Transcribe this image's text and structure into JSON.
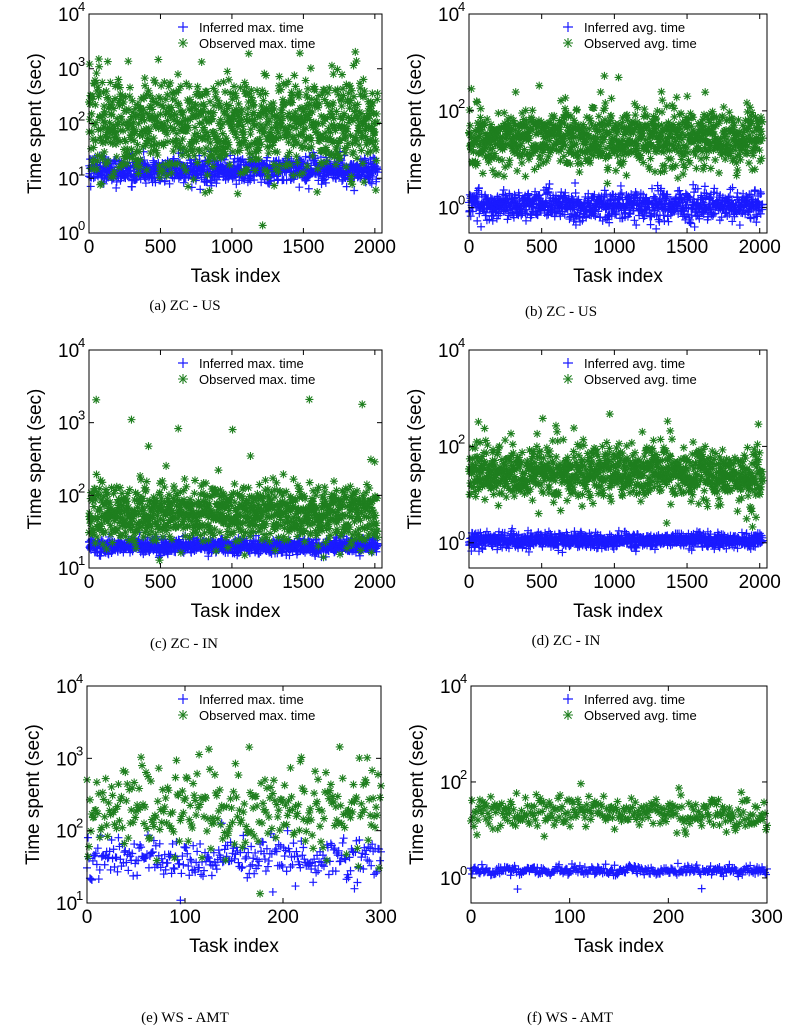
{
  "colors": {
    "inferred": "#1a1aff",
    "observed": "#1f7f1f",
    "axis": "#000000"
  },
  "chart_data": [
    {
      "type": "scatter",
      "caption": "(a) ZC - US",
      "xlabel": "Task index",
      "ylabel": "Time spent (sec)",
      "xlim": [
        0,
        2050
      ],
      "ylim": [
        1,
        10000
      ],
      "yscale": "log",
      "xticks": [
        "0",
        "500",
        "1000",
        "1500",
        "2000"
      ],
      "yticks": [
        "10",
        "10",
        "10",
        "10",
        "10"
      ],
      "ytick_exps": [
        "0",
        "1",
        "2",
        "3",
        "4"
      ],
      "legend_position": "top-right",
      "series": [
        {
          "name": "Inferred max. time",
          "marker": "plus",
          "n_points": 2000,
          "x_max": 2020,
          "log_center": 1.15,
          "log_spread": 0.12,
          "outlier_low": 0.9,
          "outlier_high": 1.5
        },
        {
          "name": "Observed max. time",
          "marker": "star",
          "n_points": 2000,
          "x_max": 2020,
          "log_center": 2.0,
          "log_spread": 0.45,
          "outlier_low": 0.7,
          "outlier_high": 3.5
        }
      ]
    },
    {
      "type": "scatter",
      "caption": "(b) ZC - US",
      "xlabel": "Task index",
      "ylabel": "Time spent (sec)",
      "xlim": [
        0,
        2050
      ],
      "ylim": [
        0.3,
        10000
      ],
      "yscale": "log",
      "xticks": [
        "0",
        "500",
        "1000",
        "1500",
        "2000"
      ],
      "yticks": [
        "10",
        "10",
        "10"
      ],
      "ytick_exps": [
        "0",
        "2",
        "4"
      ],
      "legend_position": "top-right",
      "series": [
        {
          "name": "Inferred avg. time",
          "marker": "plus",
          "n_points": 2000,
          "x_max": 2020,
          "log_center": 0.05,
          "log_spread": 0.15,
          "outlier_low": -0.3,
          "outlier_high": 0.3
        },
        {
          "name": "Observed avg. time",
          "marker": "star",
          "n_points": 2000,
          "x_max": 2020,
          "log_center": 1.45,
          "log_spread": 0.3,
          "outlier_low": 0.6,
          "outlier_high": 2.8
        }
      ]
    },
    {
      "type": "scatter",
      "caption": "(c) ZC - IN",
      "xlabel": "Task index",
      "ylabel": "Time spent (sec)",
      "xlim": [
        0,
        2050
      ],
      "ylim": [
        10,
        10000
      ],
      "yscale": "log",
      "xticks": [
        "0",
        "500",
        "1000",
        "1500",
        "2000"
      ],
      "yticks": [
        "10",
        "10",
        "10",
        "10"
      ],
      "ytick_exps": [
        "1",
        "2",
        "3",
        "4"
      ],
      "legend_position": "top-right",
      "series": [
        {
          "name": "Inferred max. time",
          "marker": "plus",
          "n_points": 2000,
          "x_max": 2020,
          "log_center": 1.3,
          "log_spread": 0.05,
          "outlier_low": 1.2,
          "outlier_high": 1.45
        },
        {
          "name": "Observed max. time",
          "marker": "star",
          "n_points": 2000,
          "x_max": 2020,
          "log_center": 1.75,
          "log_spread": 0.2,
          "outlier_low": 1.3,
          "outlier_high": 3.4
        }
      ]
    },
    {
      "type": "scatter",
      "caption": "(d)  ZC - IN",
      "xlabel": "Task index",
      "ylabel": "Time spent (sec)",
      "xlim": [
        0,
        2050
      ],
      "ylim": [
        0.3,
        10000
      ],
      "yscale": "log",
      "xticks": [
        "0",
        "500",
        "1000",
        "1500",
        "2000"
      ],
      "yticks": [
        "10",
        "10",
        "10"
      ],
      "ytick_exps": [
        "0",
        "2",
        "4"
      ],
      "legend_position": "top-right",
      "series": [
        {
          "name": "Inferred avg. time",
          "marker": "plus",
          "n_points": 2000,
          "x_max": 2020,
          "log_center": 0.05,
          "log_spread": 0.08,
          "outlier_low": -0.15,
          "outlier_high": 0.2
        },
        {
          "name": "Observed avg. time",
          "marker": "star",
          "n_points": 2000,
          "x_max": 2020,
          "log_center": 1.45,
          "log_spread": 0.28,
          "outlier_low": 0.7,
          "outlier_high": 2.8
        }
      ]
    },
    {
      "type": "scatter",
      "caption": "(e) WS - AMT",
      "xlabel": "Task index",
      "ylabel": "Time spent (sec)",
      "xlim": [
        0,
        300
      ],
      "ylim": [
        10,
        10000
      ],
      "yscale": "log",
      "xticks": [
        "0",
        "100",
        "200",
        "300"
      ],
      "yticks": [
        "10",
        "10",
        "10",
        "10"
      ],
      "ytick_exps": [
        "1",
        "2",
        "3",
        "4"
      ],
      "legend_position": "top-right",
      "series": [
        {
          "name": "Inferred max. time",
          "marker": "plus",
          "n_points": 300,
          "x_max": 300,
          "log_center": 1.62,
          "log_spread": 0.15,
          "outlier_low": 1.05,
          "outlier_high": 2.2
        },
        {
          "name": "Observed max. time",
          "marker": "star",
          "n_points": 300,
          "x_max": 300,
          "log_center": 2.3,
          "log_spread": 0.3,
          "outlier_low": 1.0,
          "outlier_high": 3.4
        }
      ]
    },
    {
      "type": "scatter",
      "caption": "(f) WS - AMT",
      "xlabel": "Task index",
      "ylabel": "Time spent (sec)",
      "xlim": [
        0,
        300
      ],
      "ylim": [
        0.3,
        10000
      ],
      "yscale": "log",
      "xticks": [
        "0",
        "100",
        "200",
        "300"
      ],
      "yticks": [
        "10",
        "10",
        "10"
      ],
      "ytick_exps": [
        "0",
        "2",
        "4"
      ],
      "legend_position": "top-right",
      "series": [
        {
          "name": "Inferred avg. time",
          "marker": "plus",
          "n_points": 300,
          "x_max": 300,
          "log_center": 0.15,
          "log_spread": 0.05,
          "outlier_low": -0.3,
          "outlier_high": 0.3
        },
        {
          "name": "Observed avg. time",
          "marker": "star",
          "n_points": 300,
          "x_max": 300,
          "log_center": 1.35,
          "log_spread": 0.18,
          "outlier_low": 0.95,
          "outlier_high": 2.1
        }
      ]
    }
  ]
}
